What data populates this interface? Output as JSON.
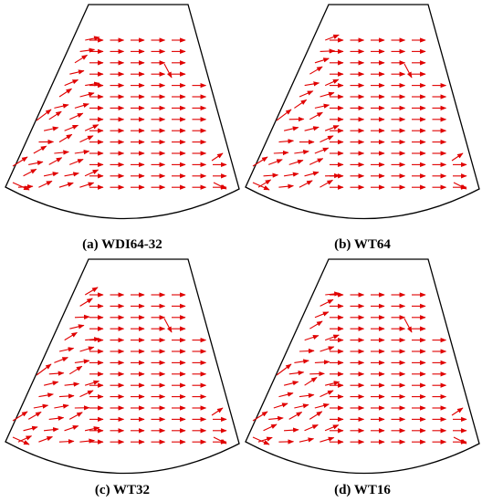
{
  "panels": [
    {
      "label": "(a) WDI64-32"
    },
    {
      "label": "(b) WT64"
    },
    {
      "label": "(c) WT32"
    },
    {
      "label": "(d) WT16"
    }
  ]
}
